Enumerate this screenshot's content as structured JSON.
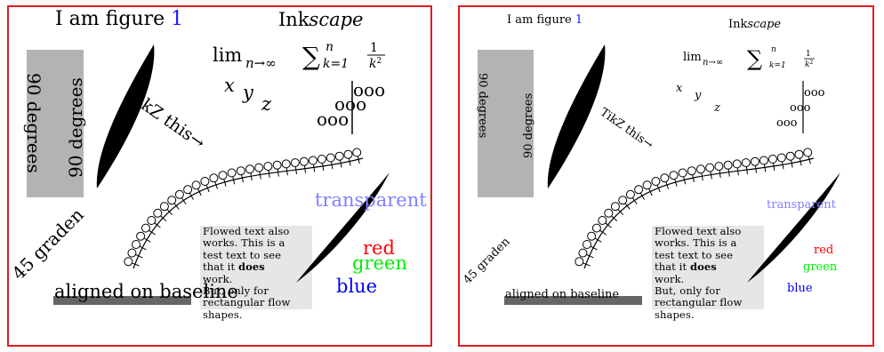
{
  "colors": {
    "frame": "#e11d1d",
    "gray_box": "#b3b3b3",
    "flow_box": "#e6e6e6",
    "baseline_bar": "#666666",
    "figure_number": "#1a1aff",
    "transparent_text": "#8080ff",
    "red_text": "#ff0000",
    "green_text": "#00ee00",
    "blue_text": "#0000ee"
  },
  "figure_label": {
    "prefix": "I am figure",
    "number": "1"
  },
  "inkscape": {
    "ink": "Ink",
    "scape": "scape"
  },
  "math": {
    "lim": "lim",
    "limit_sub": "n→∞",
    "sum": "∑",
    "sum_sub": "k=1",
    "sum_sup": "n",
    "frac_num": "1",
    "frac_den": "k",
    "frac_den_exp": "2"
  },
  "letters": [
    "x",
    "y",
    "z"
  ],
  "ooo_rows": [
    "ooo",
    "ooo",
    "ooo"
  ],
  "labels": {
    "ninety_a": "90 degrees",
    "ninety_b": "90 degrees",
    "tikz": "TikZ this→",
    "forty_five": "45 graden",
    "transparent": "transparent",
    "red": "red",
    "green": "green",
    "blue": "blue",
    "baseline": "aligned on baseline"
  },
  "flowed_text": {
    "line1": "Flowed text also",
    "line2": "works. This is a",
    "line3": "test text to see",
    "line4_pre": "that it",
    "line4_bold": "does",
    "line5": "work.",
    "line6": "But, only for",
    "line7": "rectangular flow",
    "line8": "shapes."
  }
}
